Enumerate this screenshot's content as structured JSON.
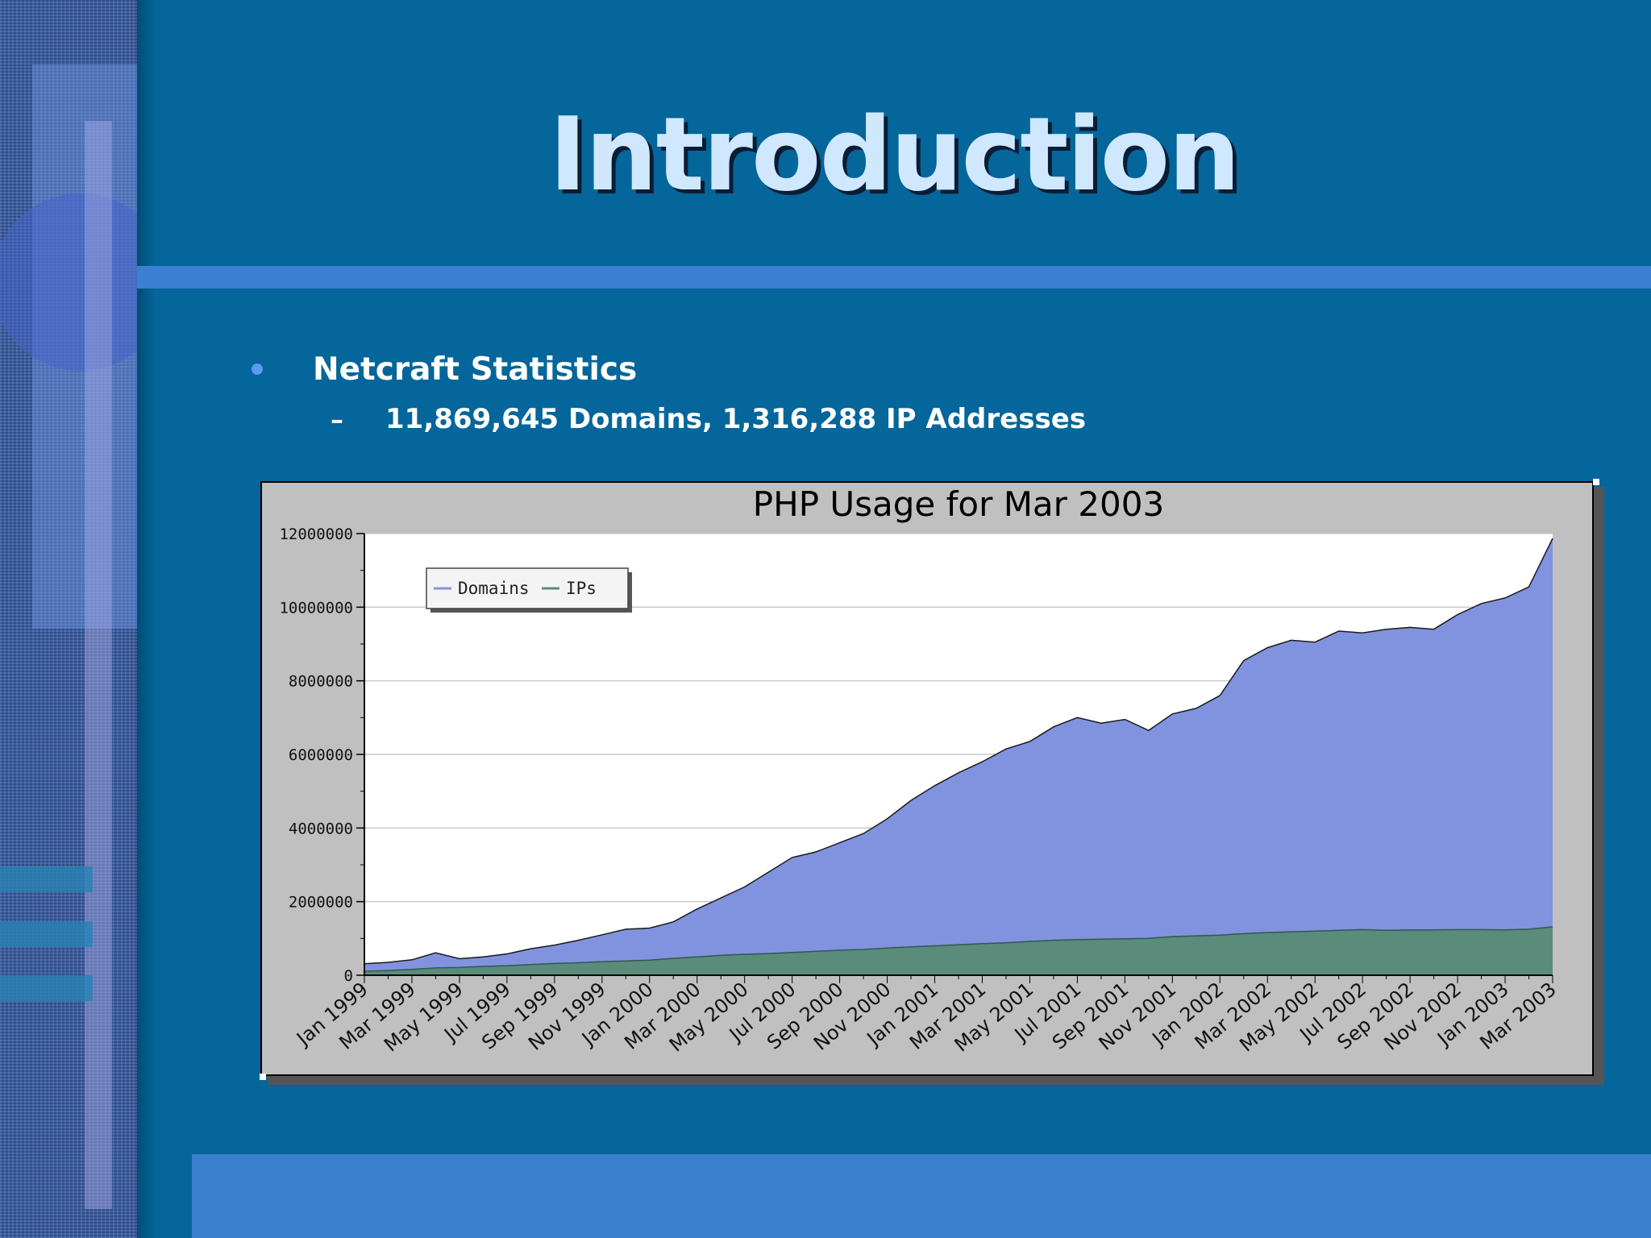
{
  "slide": {
    "title": "Introduction",
    "bullet": "Netcraft Statistics",
    "sub_dash": "–",
    "sub_bullet": "11,869,645 Domains, 1,316,288 IP Addresses"
  },
  "colors": {
    "background": "#04669a",
    "title_text": "#cfe8ff",
    "rule": "#3a7fd0",
    "chart_frame": "#c0c0c0",
    "domains": "#8193df",
    "ips": "#5b8b7b"
  },
  "chart_data": {
    "type": "area",
    "title": "PHP Usage for Mar 2003",
    "xlabel": "",
    "ylabel": "",
    "ylim": [
      0,
      12000000
    ],
    "yticks": [
      0,
      2000000,
      4000000,
      6000000,
      8000000,
      10000000,
      12000000
    ],
    "ytick_labels": [
      "0",
      "2000000",
      "4000000",
      "6000000",
      "8000000",
      "10000000",
      "12000000"
    ],
    "grid": true,
    "legend": "top-left",
    "x": [
      "Jan 1999",
      "Feb 1999",
      "Mar 1999",
      "Apr 1999",
      "May 1999",
      "Jun 1999",
      "Jul 1999",
      "Aug 1999",
      "Sep 1999",
      "Oct 1999",
      "Nov 1999",
      "Dec 1999",
      "Jan 2000",
      "Feb 2000",
      "Mar 2000",
      "Apr 2000",
      "May 2000",
      "Jun 2000",
      "Jul 2000",
      "Aug 2000",
      "Sep 2000",
      "Oct 2000",
      "Nov 2000",
      "Dec 2000",
      "Jan 2001",
      "Feb 2001",
      "Mar 2001",
      "Apr 2001",
      "May 2001",
      "Jun 2001",
      "Jul 2001",
      "Aug 2001",
      "Sep 2001",
      "Oct 2001",
      "Nov 2001",
      "Dec 2001",
      "Jan 2002",
      "Feb 2002",
      "Mar 2002",
      "Apr 2002",
      "May 2002",
      "Jun 2002",
      "Jul 2002",
      "Aug 2002",
      "Sep 2002",
      "Oct 2002",
      "Nov 2002",
      "Dec 2002",
      "Jan 2003",
      "Feb 2003",
      "Mar 2003"
    ],
    "x_tick_labels": [
      "Jan 1999",
      "Mar 1999",
      "May 1999",
      "Jul 1999",
      "Sep 1999",
      "Nov 1999",
      "Jan 2000",
      "Mar 2000",
      "May 2000",
      "Jul 2000",
      "Sep 2000",
      "Nov 2000",
      "Jan 2001",
      "Mar 2001",
      "May 2001",
      "Jul 2001",
      "Sep 2001",
      "Nov 2001",
      "Jan 2002",
      "Mar 2002",
      "May 2002",
      "Jul 2002",
      "Sep 2002",
      "Nov 2002",
      "Jan 2003",
      "Mar 2003"
    ],
    "series": [
      {
        "name": "Domains",
        "color": "#8193df",
        "values": [
          310000,
          350000,
          420000,
          610000,
          450000,
          500000,
          580000,
          720000,
          820000,
          950000,
          1100000,
          1250000,
          1280000,
          1450000,
          1800000,
          2100000,
          2400000,
          2800000,
          3200000,
          3350000,
          3600000,
          3850000,
          4250000,
          4750000,
          5150000,
          5500000,
          5800000,
          6150000,
          6350000,
          6750000,
          7000000,
          6850000,
          6950000,
          6650000,
          7100000,
          7250000,
          7600000,
          8550000,
          8900000,
          9100000,
          9050000,
          9350000,
          9300000,
          9400000,
          9450000,
          9400000,
          9800000,
          10100000,
          10250000,
          10550000,
          11869645
        ]
      },
      {
        "name": "IPs",
        "color": "#5b8b7b",
        "values": [
          110000,
          130000,
          160000,
          200000,
          210000,
          240000,
          260000,
          290000,
          320000,
          340000,
          370000,
          390000,
          410000,
          460000,
          500000,
          540000,
          570000,
          590000,
          620000,
          650000,
          680000,
          700000,
          740000,
          770000,
          800000,
          830000,
          860000,
          880000,
          920000,
          950000,
          970000,
          980000,
          990000,
          1000000,
          1050000,
          1070000,
          1090000,
          1130000,
          1160000,
          1180000,
          1200000,
          1220000,
          1240000,
          1220000,
          1230000,
          1230000,
          1240000,
          1240000,
          1230000,
          1250000,
          1316288
        ]
      }
    ]
  }
}
